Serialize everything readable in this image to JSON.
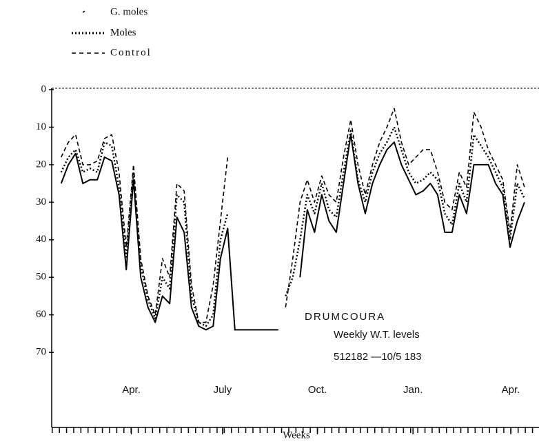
{
  "chart_data": {
    "type": "line",
    "legend": [
      "G. moles",
      "Moles",
      "Control"
    ],
    "annotations": [
      "DRUMCOURA",
      "Weekly W.T. levels",
      "512182 —10/5 183"
    ],
    "x_label": "Weeks",
    "x": [
      0,
      1,
      2,
      3,
      4,
      5,
      6,
      7,
      8,
      9,
      10,
      11,
      12,
      13,
      14,
      15,
      16,
      17,
      18,
      19,
      20,
      21,
      22,
      23,
      24,
      25,
      26,
      27,
      28,
      29,
      30,
      31,
      32,
      33,
      34,
      35,
      36,
      37,
      38,
      39,
      40,
      41,
      42,
      43,
      44,
      45,
      46,
      47,
      48,
      49,
      50,
      51,
      52,
      53,
      54,
      55,
      56,
      57,
      58,
      59,
      60,
      61,
      62,
      63,
      64
    ],
    "xlim": [
      -1.3,
      66
    ],
    "xticks": [
      {
        "value": 9.7,
        "label": "Apr."
      },
      {
        "value": 22.3,
        "label": "July"
      },
      {
        "value": 35.4,
        "label": "Oct."
      },
      {
        "value": 48.6,
        "label": "Jan."
      },
      {
        "value": 62.1,
        "label": "Apr."
      }
    ],
    "ylim": [
      0,
      90
    ],
    "yticks": [
      0,
      10,
      20,
      30,
      40,
      50,
      60,
      70
    ],
    "inverted_y": true,
    "series": [
      {
        "name": "G. moles",
        "color": "#000000",
        "style": "solid",
        "values": [
          25,
          20,
          17,
          25,
          24,
          24,
          18,
          19,
          28,
          48,
          24,
          50,
          58,
          62,
          55,
          57,
          34,
          38,
          58,
          63,
          64,
          63,
          45,
          37,
          64,
          64,
          64,
          64,
          64,
          64,
          64,
          null,
          null,
          50,
          32,
          38,
          28,
          35,
          38,
          25,
          12,
          25,
          33,
          25,
          20,
          16,
          14,
          20,
          24,
          28,
          27,
          25,
          28,
          38,
          38,
          28,
          33,
          20,
          20,
          20,
          25,
          28,
          42,
          35,
          30
        ]
      },
      {
        "name": "Moles",
        "color": "#000000",
        "style": "dotted",
        "values": [
          22,
          18,
          16,
          22,
          21,
          22,
          14,
          15,
          26,
          45,
          22,
          47,
          56,
          61,
          50,
          53,
          28,
          30,
          55,
          62,
          63,
          60,
          40,
          33,
          null,
          null,
          null,
          null,
          null,
          null,
          null,
          55,
          50,
          40,
          28,
          33,
          25,
          32,
          34,
          22,
          11,
          24,
          30,
          22,
          17,
          14,
          10,
          16,
          22,
          25,
          24,
          22,
          24,
          33,
          36,
          25,
          30,
          12,
          15,
          18,
          22,
          26,
          40,
          25,
          29
        ]
      },
      {
        "name": "Control",
        "color": "#000000",
        "style": "dashed",
        "values": [
          18,
          14,
          12,
          20,
          20,
          19,
          13,
          12,
          22,
          42,
          20,
          45,
          55,
          60,
          45,
          50,
          25,
          27,
          52,
          62,
          62,
          52,
          35,
          18,
          null,
          null,
          null,
          null,
          null,
          null,
          null,
          58,
          45,
          30,
          24,
          30,
          23,
          28,
          30,
          18,
          8,
          20,
          28,
          20,
          14,
          10,
          5,
          14,
          20,
          18,
          16,
          16,
          22,
          30,
          32,
          22,
          26,
          6,
          10,
          16,
          20,
          24,
          38,
          20,
          26
        ]
      }
    ]
  }
}
